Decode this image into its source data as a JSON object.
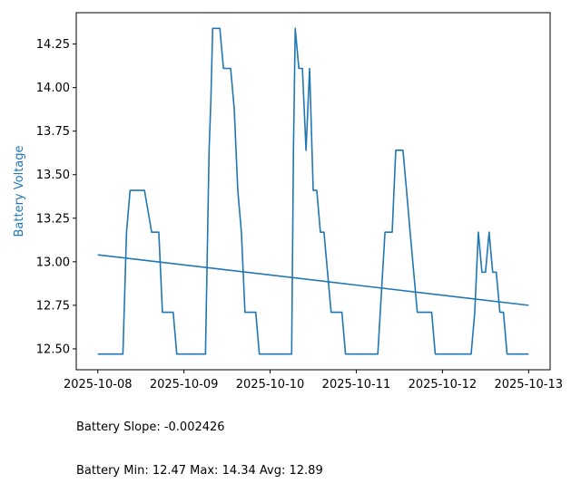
{
  "chart_data": {
    "type": "line",
    "title": "",
    "xlabel": "",
    "ylabel": "Battery Voltage",
    "xlim": [
      "2025-10-07T18:00",
      "2025-10-13T06:00"
    ],
    "ylim": [
      12.38,
      14.43
    ],
    "x_ticks": [
      "2025-10-08",
      "2025-10-09",
      "2025-10-10",
      "2025-10-11",
      "2025-10-12",
      "2025-10-13"
    ],
    "y_ticks": [
      "12.50",
      "12.75",
      "13.00",
      "13.25",
      "13.50",
      "13.75",
      "14.00",
      "14.25"
    ],
    "y_tick_values": [
      12.5,
      12.75,
      13.0,
      13.25,
      13.5,
      13.75,
      14.0,
      14.25
    ],
    "grid": false,
    "series": [
      {
        "color": "#1f77b4",
        "points": [
          [
            "2025-10-08T00:00",
            12.47
          ],
          [
            "2025-10-08T07:00",
            12.47
          ],
          [
            "2025-10-08T08:00",
            13.17
          ],
          [
            "2025-10-08T09:00",
            13.41
          ],
          [
            "2025-10-08T13:00",
            13.41
          ],
          [
            "2025-10-08T15:00",
            13.17
          ],
          [
            "2025-10-08T17:00",
            13.17
          ],
          [
            "2025-10-08T18:00",
            12.71
          ],
          [
            "2025-10-08T21:00",
            12.71
          ],
          [
            "2025-10-08T22:00",
            12.47
          ],
          [
            "2025-10-09T06:00",
            12.47
          ],
          [
            "2025-10-09T07:00",
            13.64
          ],
          [
            "2025-10-09T07:30",
            13.93
          ],
          [
            "2025-10-09T08:00",
            14.34
          ],
          [
            "2025-10-09T10:00",
            14.34
          ],
          [
            "2025-10-09T11:00",
            14.11
          ],
          [
            "2025-10-09T13:00",
            14.11
          ],
          [
            "2025-10-09T14:00",
            13.88
          ],
          [
            "2025-10-09T15:00",
            13.41
          ],
          [
            "2025-10-09T16:00",
            13.17
          ],
          [
            "2025-10-09T17:00",
            12.71
          ],
          [
            "2025-10-09T20:00",
            12.71
          ],
          [
            "2025-10-09T21:00",
            12.47
          ],
          [
            "2025-10-10T06:00",
            12.47
          ],
          [
            "2025-10-10T06:30",
            13.64
          ],
          [
            "2025-10-10T07:00",
            14.34
          ],
          [
            "2025-10-10T08:00",
            14.11
          ],
          [
            "2025-10-10T09:00",
            14.11
          ],
          [
            "2025-10-10T10:00",
            13.64
          ],
          [
            "2025-10-10T11:00",
            14.11
          ],
          [
            "2025-10-10T12:00",
            13.41
          ],
          [
            "2025-10-10T13:00",
            13.41
          ],
          [
            "2025-10-10T14:00",
            13.17
          ],
          [
            "2025-10-10T15:00",
            13.17
          ],
          [
            "2025-10-10T16:00",
            12.94
          ],
          [
            "2025-10-10T17:00",
            12.71
          ],
          [
            "2025-10-10T20:00",
            12.71
          ],
          [
            "2025-10-10T21:00",
            12.47
          ],
          [
            "2025-10-11T06:00",
            12.47
          ],
          [
            "2025-10-11T08:00",
            13.17
          ],
          [
            "2025-10-11T10:00",
            13.17
          ],
          [
            "2025-10-11T11:00",
            13.64
          ],
          [
            "2025-10-11T13:00",
            13.64
          ],
          [
            "2025-10-11T14:00",
            13.41
          ],
          [
            "2025-10-11T15:00",
            13.17
          ],
          [
            "2025-10-11T17:00",
            12.71
          ],
          [
            "2025-10-11T21:00",
            12.71
          ],
          [
            "2025-10-11T22:00",
            12.47
          ],
          [
            "2025-10-12T08:00",
            12.47
          ],
          [
            "2025-10-12T09:00",
            12.71
          ],
          [
            "2025-10-12T10:00",
            13.17
          ],
          [
            "2025-10-12T11:00",
            12.94
          ],
          [
            "2025-10-12T12:00",
            12.94
          ],
          [
            "2025-10-12T13:00",
            13.17
          ],
          [
            "2025-10-12T14:00",
            12.94
          ],
          [
            "2025-10-12T15:00",
            12.94
          ],
          [
            "2025-10-12T16:00",
            12.71
          ],
          [
            "2025-10-12T17:00",
            12.71
          ],
          [
            "2025-10-12T18:00",
            12.47
          ],
          [
            "2025-10-13T00:00",
            12.47
          ]
        ]
      },
      {
        "color": "#1f77b4",
        "points": [
          [
            "2025-10-08T00:00",
            13.04
          ],
          [
            "2025-10-13T00:00",
            12.75
          ]
        ]
      }
    ]
  },
  "stats": {
    "slope_line": "Battery Slope: -0.002426",
    "minmax_line": "Battery Min: 12.47 Max: 14.34 Avg: 12.89"
  },
  "colors": {
    "line": "#1f77b4",
    "axis": "#000000",
    "ylabel": "#1f77b4"
  }
}
